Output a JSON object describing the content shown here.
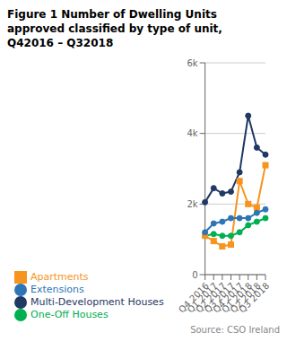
{
  "chart_data": {
    "type": "line",
    "title": "Figure 1 Number of Dwelling Units\napproved classified by type of unit,\nQ42016 – Q32018",
    "categories": [
      "Q4 2016",
      "Q1 2017",
      "Q2 2017",
      "Q3 2017",
      "Q4 2017",
      "Q1 2018",
      "Q2 2018",
      "Q3 2018"
    ],
    "series": [
      {
        "name": "Multi-Development Houses",
        "color": "#1F3864",
        "marker": "circle",
        "values": [
          2050,
          2450,
          2300,
          2350,
          2900,
          4500,
          3600,
          3400
        ]
      },
      {
        "name": "One-Off Houses",
        "color": "#00B050",
        "marker": "circle",
        "values": [
          1100,
          1150,
          1100,
          1100,
          1200,
          1400,
          1500,
          1600
        ]
      },
      {
        "name": "Apartments",
        "color": "#F7941D",
        "marker": "square",
        "values": [
          1100,
          950,
          800,
          850,
          2650,
          2000,
          1900,
          3100
        ]
      },
      {
        "name": "Extensions",
        "color": "#2E75B6",
        "marker": "circle",
        "values": [
          1200,
          1450,
          1500,
          1600,
          1600,
          1600,
          1750,
          1850
        ]
      }
    ],
    "ylim": [
      0,
      6000
    ],
    "yticks": [
      0,
      {
        "value": 2000,
        "label": "2k"
      },
      {
        "value": 4000,
        "label": "4k"
      },
      {
        "value": 6000,
        "label": "6k"
      }
    ],
    "grid": true,
    "legend": "bottom",
    "annotations": [
      "Source: CSO Ireland"
    ]
  }
}
